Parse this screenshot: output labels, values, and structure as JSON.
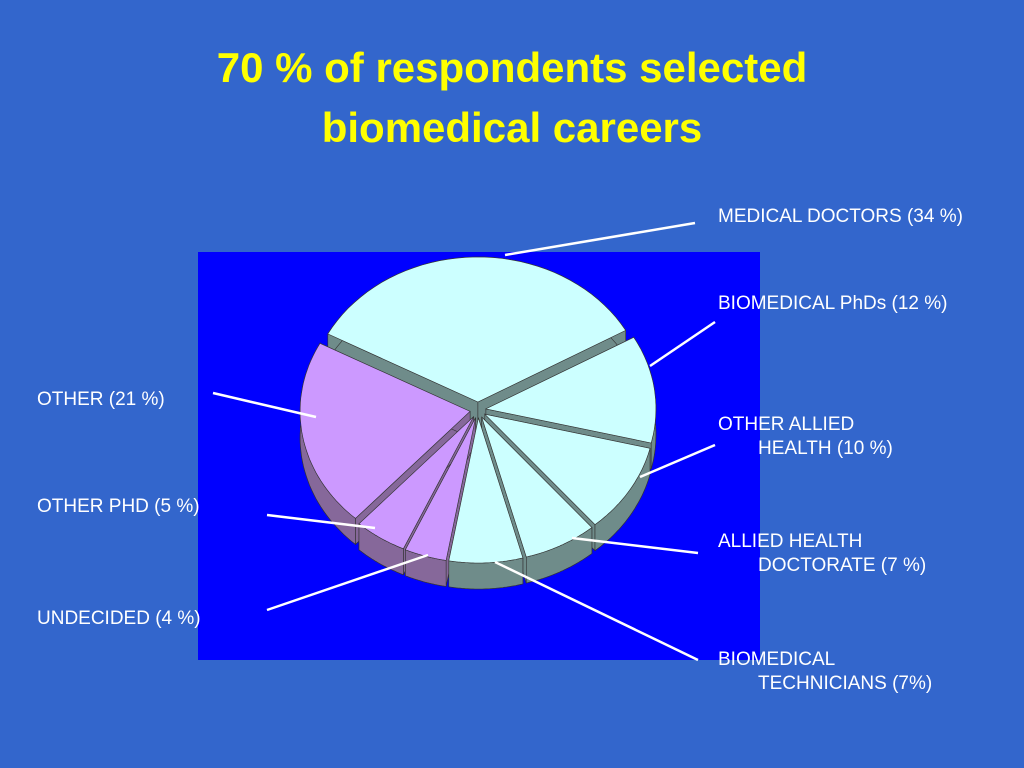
{
  "title": [
    "70 % of respondents selected",
    "biomedical careers"
  ],
  "chart_data": {
    "type": "pie",
    "categories": [
      "MEDICAL DOCTORS (34 %)",
      "BIOMEDICAL PhDs (12 %)",
      "OTHER ALLIED HEALTH (10 %)",
      "ALLIED HEALTH DOCTORATE (7 %)",
      "BIOMEDICAL TECHNICIANS (7%)",
      "UNDECIDED (4 %)",
      "OTHER PHD (5 %)",
      "OTHER (21 %)"
    ],
    "values": [
      34,
      12,
      10,
      7,
      7,
      4,
      5,
      21
    ],
    "colors": [
      "#ccffff",
      "#ccffff",
      "#ccffff",
      "#ccffff",
      "#ccffff",
      "#cc99ff",
      "#cc99ff",
      "#cc99ff"
    ]
  }
}
